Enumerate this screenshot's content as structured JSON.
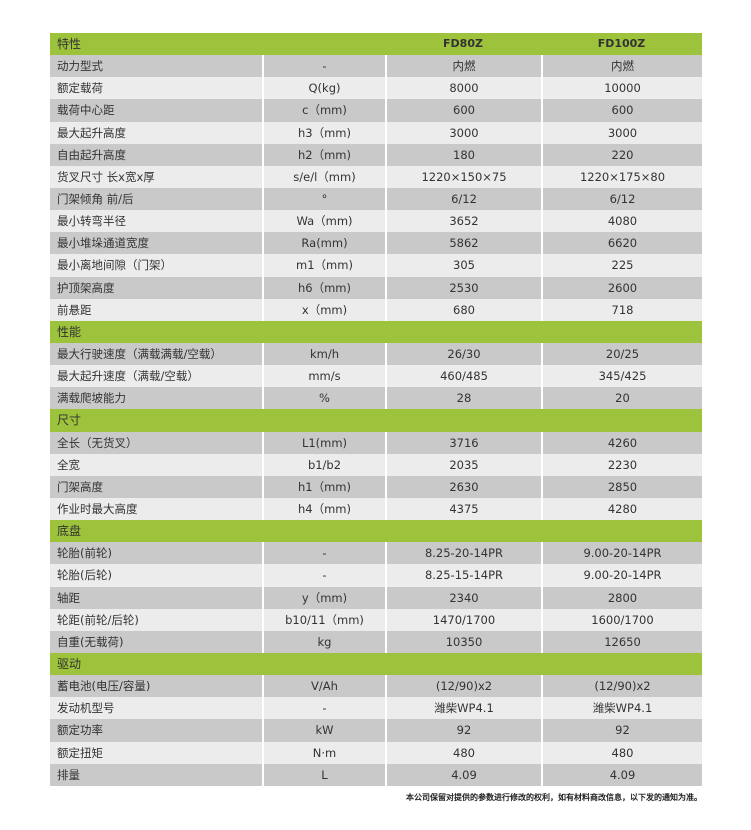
{
  "header": {
    "label": "特性",
    "models": [
      "FD80Z",
      "FD100Z"
    ]
  },
  "sections": [
    {
      "title": null,
      "rows": [
        [
          "动力型式",
          "-",
          "内燃",
          "内燃"
        ],
        [
          "额定载荷",
          "Q(kg)",
          "8000",
          "10000"
        ],
        [
          "载荷中心距",
          "c（mm)",
          "600",
          "600"
        ],
        [
          "最大起升高度",
          "h3（mm)",
          "3000",
          "3000"
        ],
        [
          "自由起升高度",
          "h2（mm)",
          "180",
          "220"
        ],
        [
          "货叉尺寸 长x宽x厚",
          "s/e/l（mm)",
          "1220×150×75",
          "1220×175×80"
        ],
        [
          "门架倾角 前/后",
          "°",
          "6/12",
          "6/12"
        ],
        [
          "最小转弯半径",
          "Wa（mm)",
          "3652",
          "4080"
        ],
        [
          "最小堆垛通道宽度",
          "Ra(mm)",
          "5862",
          "6620"
        ],
        [
          "最小离地间隙（门架）",
          "m1（mm)",
          "305",
          "225"
        ],
        [
          "护顶架高度",
          "h6（mm)",
          "2530",
          "2600"
        ],
        [
          "前悬距",
          "x（mm)",
          "680",
          "718"
        ]
      ]
    },
    {
      "title": "性能",
      "rows": [
        [
          "最大行驶速度（满载满载/空载）",
          "km/h",
          "26/30",
          "20/25"
        ],
        [
          "最大起升速度（满载/空载）",
          "mm/s",
          "460/485",
          "345/425"
        ],
        [
          "满载爬坡能力",
          "%",
          "28",
          "20"
        ]
      ]
    },
    {
      "title": "尺寸",
      "rows": [
        [
          "全长（无货叉）",
          "L1(mm)",
          "3716",
          "4260"
        ],
        [
          "全宽",
          "b1/b2",
          "2035",
          "2230"
        ],
        [
          "门架高度",
          "h1（mm)",
          "2630",
          "2850"
        ],
        [
          "作业时最大高度",
          "h4（mm)",
          "4375",
          "4280"
        ]
      ]
    },
    {
      "title": "底盘",
      "rows": [
        [
          "轮胎(前轮)",
          "-",
          "8.25-20-14PR",
          "9.00-20-14PR"
        ],
        [
          "轮胎(后轮)",
          "-",
          "8.25-15-14PR",
          "9.00-20-14PR"
        ],
        [
          "轴距",
          "y（mm)",
          "2340",
          "2800"
        ],
        [
          "轮距(前轮/后轮)",
          "b10/11（mm)",
          "1470/1700",
          "1600/1700"
        ],
        [
          "自重(无载荷)",
          "kg",
          "10350",
          "12650"
        ]
      ]
    },
    {
      "title": "驱动",
      "rows": [
        [
          "蓄电池(电压/容量)",
          "V/Ah",
          "(12/90)x2",
          "(12/90)x2"
        ],
        [
          "发动机型号",
          "-",
          "潍柴WP4.1",
          "潍柴WP4.1"
        ],
        [
          "额定功率",
          "kW",
          "92",
          "92"
        ],
        [
          "额定扭矩",
          "N·m",
          "480",
          "480"
        ],
        [
          "排量",
          "L",
          "4.09",
          "4.09"
        ]
      ]
    }
  ],
  "note": "本公司保留对提供的参数进行修改的权利，如有材料商改信息，以下发的通知为准。",
  "colors": {
    "section": "#9dc23b",
    "row_dark": "#c9c9c9",
    "row_light": "#ececec"
  }
}
